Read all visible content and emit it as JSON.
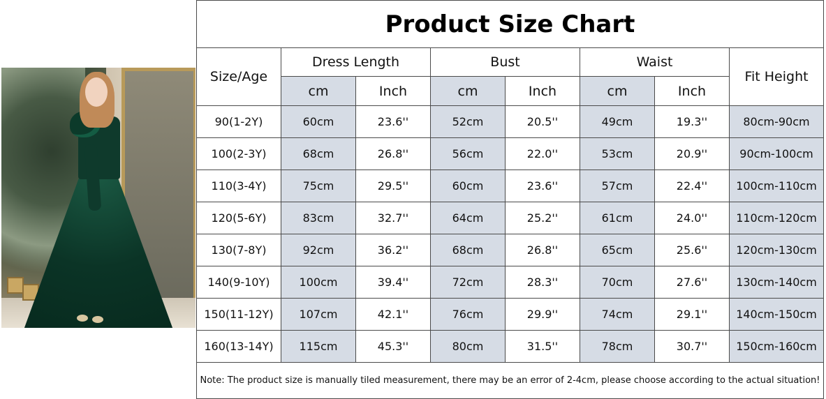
{
  "photo": {
    "description_icon": "girl-dress-photo"
  },
  "chart": {
    "title": "Product Size Chart",
    "header": {
      "size_age": "Size/Age",
      "dress_length": "Dress Length",
      "bust": "Bust",
      "waist": "Waist",
      "fit_height": "Fit Height",
      "cm": "cm",
      "inch": "Inch"
    },
    "rows": [
      [
        "90(1-2Y)",
        "60cm",
        "23.6''",
        "52cm",
        "20.5''",
        "49cm",
        "19.3''",
        "80cm-90cm"
      ],
      [
        "100(2-3Y)",
        "68cm",
        "26.8''",
        "56cm",
        "22.0''",
        "53cm",
        "20.9''",
        "90cm-100cm"
      ],
      [
        "110(3-4Y)",
        "75cm",
        "29.5''",
        "60cm",
        "23.6''",
        "57cm",
        "22.4''",
        "100cm-110cm"
      ],
      [
        "120(5-6Y)",
        "83cm",
        "32.7''",
        "64cm",
        "25.2''",
        "61cm",
        "24.0''",
        "110cm-120cm"
      ],
      [
        "130(7-8Y)",
        "92cm",
        "36.2''",
        "68cm",
        "26.8''",
        "65cm",
        "25.6''",
        "120cm-130cm"
      ],
      [
        "140(9-10Y)",
        "100cm",
        "39.4''",
        "72cm",
        "28.3''",
        "70cm",
        "27.6''",
        "130cm-140cm"
      ],
      [
        "150(11-12Y)",
        "107cm",
        "42.1''",
        "76cm",
        "29.9''",
        "74cm",
        "29.1''",
        "140cm-150cm"
      ],
      [
        "160(13-14Y)",
        "115cm",
        "45.3''",
        "80cm",
        "31.5''",
        "78cm",
        "30.7''",
        "150cm-160cm"
      ]
    ],
    "note": "Note: The product size is manually tiled measurement, there may be an error of 2-4cm, please choose according to the actual situation!"
  },
  "colors": {
    "shaded_cell": "#d6dce5",
    "border": "#4a4a4a"
  }
}
